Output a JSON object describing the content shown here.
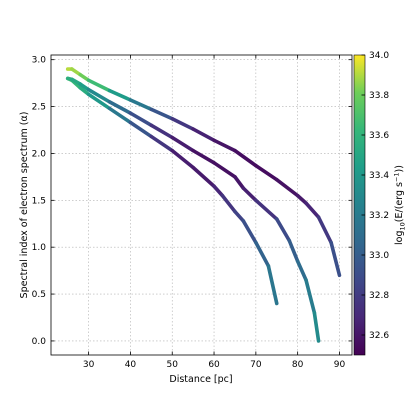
{
  "chart_data": {
    "type": "line",
    "xlabel": "Distance [pc]",
    "ylabel": "Spectral index of electron spectrum (α)",
    "xlim": [
      21,
      93
    ],
    "ylim": [
      -0.15,
      3.05
    ],
    "xticks": [
      30,
      40,
      50,
      60,
      70,
      80,
      90
    ],
    "yticks": [
      0.0,
      0.5,
      1.0,
      1.5,
      2.0,
      2.5,
      3.0
    ],
    "grid": true,
    "colorbar": {
      "label": "log10(E/(erg s^-1))",
      "label_base": "log",
      "label_sub": "10",
      "label_rest": "(E/(erg s",
      "label_sup": "−1",
      "label_end": "))",
      "range": [
        32.5,
        34.0
      ],
      "ticks": [
        32.6,
        32.8,
        33.0,
        33.2,
        33.4,
        33.6,
        33.8,
        34.0
      ],
      "colormap": "viridis"
    },
    "series": [
      {
        "x": [
          25,
          26,
          28,
          30,
          35,
          40,
          45,
          50,
          55,
          60,
          62,
          65,
          67,
          70,
          73,
          75
        ],
        "y": [
          2.8,
          2.78,
          2.7,
          2.63,
          2.48,
          2.33,
          2.18,
          2.03,
          1.85,
          1.65,
          1.55,
          1.38,
          1.28,
          1.05,
          0.8,
          0.4
        ],
        "colorvalue": [
          33.7,
          33.66,
          33.58,
          33.5,
          33.3,
          33.05,
          32.85,
          32.68,
          32.6,
          32.65,
          32.72,
          32.8,
          32.88,
          32.97,
          33.1,
          33.22
        ]
      },
      {
        "x": [
          25,
          26,
          28,
          30,
          35,
          40,
          45,
          50,
          55,
          60,
          65,
          67,
          70,
          75,
          78,
          80,
          82,
          84,
          85
        ],
        "y": [
          2.8,
          2.79,
          2.74,
          2.68,
          2.55,
          2.43,
          2.3,
          2.17,
          2.03,
          1.9,
          1.75,
          1.63,
          1.5,
          1.3,
          1.07,
          0.85,
          0.65,
          0.3,
          0.0
        ],
        "colorvalue": [
          33.58,
          33.55,
          33.48,
          33.4,
          33.2,
          33.0,
          32.82,
          32.68,
          32.6,
          32.56,
          32.58,
          32.62,
          32.68,
          32.82,
          32.95,
          33.05,
          33.15,
          33.27,
          33.35
        ]
      },
      {
        "x": [
          25,
          26,
          28,
          30,
          35,
          40,
          45,
          50,
          55,
          60,
          65,
          70,
          75,
          80,
          82,
          85,
          88,
          90
        ],
        "y": [
          2.9,
          2.9,
          2.84,
          2.78,
          2.67,
          2.57,
          2.47,
          2.37,
          2.26,
          2.14,
          2.03,
          1.87,
          1.72,
          1.55,
          1.47,
          1.32,
          1.05,
          0.7
        ],
        "colorvalue": [
          33.92,
          33.9,
          33.85,
          33.76,
          33.55,
          33.3,
          33.05,
          32.85,
          32.7,
          32.62,
          32.57,
          32.55,
          32.56,
          32.6,
          32.64,
          32.72,
          32.85,
          32.98
        ]
      }
    ]
  }
}
